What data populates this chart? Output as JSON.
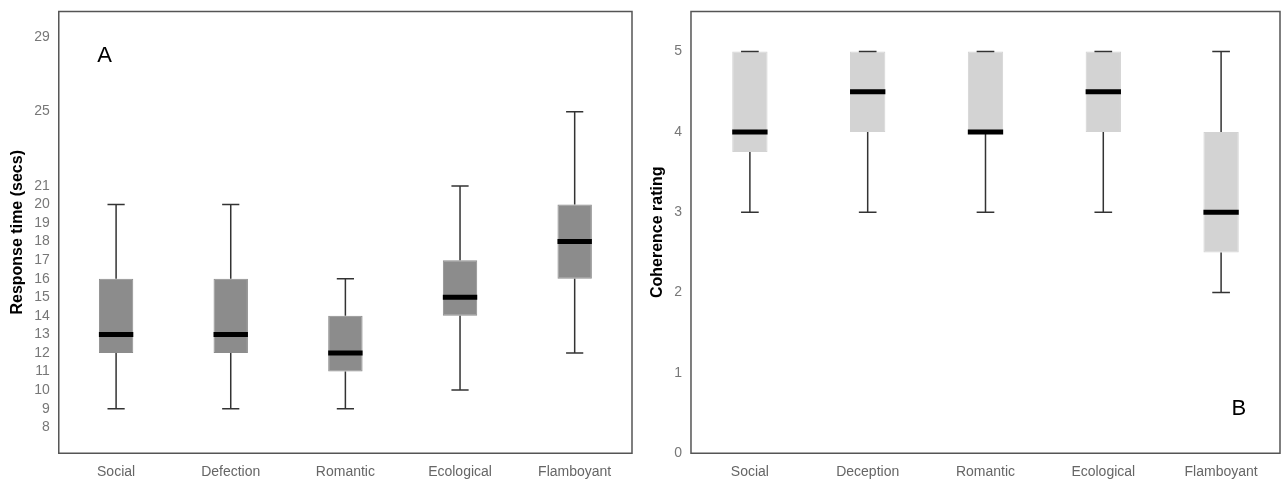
{
  "chart_data": [
    {
      "type": "box",
      "ylabel": "Response time (secs)",
      "annotations": [
        "A"
      ],
      "color": "#8c8c8c",
      "categories": [
        "Social",
        "Defection",
        "Romantic",
        "Ecological",
        "Flamboyant"
      ],
      "boxes": [
        {
          "low": 9,
          "q1": 12,
          "median": 13,
          "q3": 16,
          "high": 20
        },
        {
          "low": 9,
          "q1": 12,
          "median": 13,
          "q3": 16,
          "high": 20
        },
        {
          "low": 9,
          "q1": 11,
          "median": 12,
          "q3": 14,
          "high": 16
        },
        {
          "low": 10,
          "q1": 14,
          "median": 15,
          "q3": 17,
          "high": 21
        },
        {
          "low": 12,
          "q1": 16,
          "median": 18,
          "q3": 20,
          "high": 25
        }
      ],
      "ylim": [
        6.6,
        30.4
      ],
      "yticks": [
        8,
        9,
        10,
        11,
        12,
        13,
        14,
        15,
        16,
        17,
        18,
        19,
        20,
        21,
        25,
        29
      ],
      "grid": false,
      "legend": false
    },
    {
      "type": "box",
      "ylabel": "Coherence rating",
      "annotations": [
        "B"
      ],
      "color": "#d3d3d3",
      "categories": [
        "Social",
        "Deception",
        "Romantic",
        "Ecological",
        "Flamboyant"
      ],
      "boxes": [
        {
          "low": 3,
          "q1": 3.75,
          "median": 4,
          "q3": 5,
          "high": 5
        },
        {
          "low": 3,
          "q1": 4,
          "median": 4.5,
          "q3": 5,
          "high": 5
        },
        {
          "low": 3,
          "q1": 4,
          "median": 4,
          "q3": 5,
          "high": 5
        },
        {
          "low": 3,
          "q1": 4,
          "median": 4.5,
          "q3": 5,
          "high": 5
        },
        {
          "low": 2,
          "q1": 2.5,
          "median": 3,
          "q3": 4,
          "high": 5
        }
      ],
      "ylim": [
        0,
        5.5
      ],
      "yticks": [
        0,
        1,
        2,
        3,
        4,
        5
      ],
      "grid": false,
      "legend": false
    }
  ]
}
